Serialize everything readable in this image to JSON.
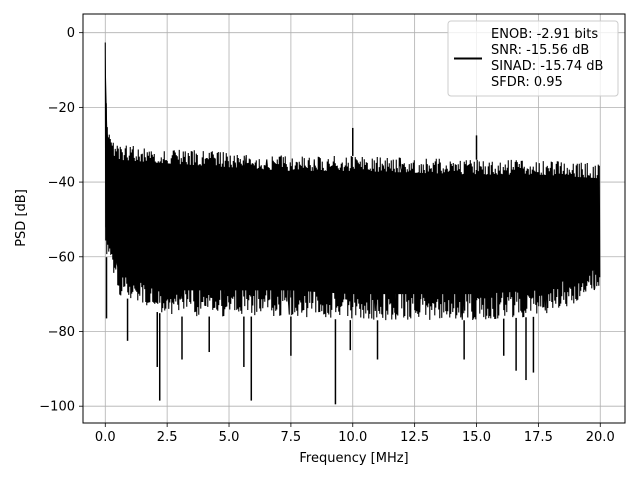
{
  "chart_data": {
    "type": "line",
    "xlabel": "Frequency [MHz]",
    "ylabel": "PSD [dB]",
    "xlim": [
      -0.9,
      21.0
    ],
    "ylim": [
      -104.5,
      5.0
    ],
    "x_ticks": [
      0.0,
      2.5,
      5.0,
      7.5,
      10.0,
      12.5,
      15.0,
      17.5,
      20.0
    ],
    "x_tick_labels": [
      "0.0",
      "2.5",
      "5.0",
      "7.5",
      "10.0",
      "12.5",
      "15.0",
      "17.5",
      "20.0"
    ],
    "y_ticks": [
      0,
      -20,
      -40,
      -60,
      -80,
      -100
    ],
    "y_tick_labels": [
      "0",
      "−20",
      "−40",
      "−60",
      "−80",
      "−100"
    ],
    "grid": true,
    "legend_placement": "top-right",
    "line_color": "#000000",
    "series": [
      {
        "name": "ENOB: -2.91 bits\nSNR: -15.56 dB\nSINAD: -15.74 dB\nSFDR: 0.95",
        "legend_lines": [
          "ENOB: -2.91 bits",
          "SNR: -15.56 dB",
          "SINAD: -15.74 dB",
          "SFDR: 0.95"
        ],
        "x_range": [
          0.0,
          20.0
        ],
        "upper_envelope": [
          [
            0.0,
            0
          ],
          [
            0.05,
            -20
          ],
          [
            0.1,
            -24
          ],
          [
            0.2,
            -28
          ],
          [
            0.5,
            -30
          ],
          [
            2.5,
            -31
          ],
          [
            5.0,
            -32
          ],
          [
            7.5,
            -33
          ],
          [
            10.0,
            -33
          ],
          [
            12.5,
            -33.5
          ],
          [
            15.0,
            -34
          ],
          [
            17.5,
            -34
          ],
          [
            20.0,
            -35
          ]
        ],
        "lower_envelope": [
          [
            0.0,
            -59
          ],
          [
            0.5,
            -70
          ],
          [
            2.5,
            -76
          ],
          [
            5.0,
            -76
          ],
          [
            7.5,
            -76
          ],
          [
            10.0,
            -77
          ],
          [
            12.5,
            -77
          ],
          [
            15.0,
            -77
          ],
          [
            17.5,
            -76
          ],
          [
            20.0,
            -70
          ]
        ],
        "spurs": [
          [
            0.0,
            0
          ],
          [
            10.0,
            -25.5
          ],
          [
            15.0,
            -27.5
          ]
        ],
        "dips": [
          [
            0.05,
            -76.5
          ],
          [
            0.9,
            -82.5
          ],
          [
            2.1,
            -89.5
          ],
          [
            2.2,
            -98.5
          ],
          [
            3.1,
            -87.5
          ],
          [
            4.2,
            -85.5
          ],
          [
            5.6,
            -89.5
          ],
          [
            5.9,
            -98.5
          ],
          [
            7.5,
            -86.5
          ],
          [
            9.3,
            -99.5
          ],
          [
            9.9,
            -85
          ],
          [
            11.0,
            -87.5
          ],
          [
            14.5,
            -87.5
          ],
          [
            16.1,
            -86.5
          ],
          [
            16.6,
            -90.5
          ],
          [
            17.0,
            -93
          ],
          [
            17.3,
            -91
          ]
        ]
      }
    ]
  }
}
